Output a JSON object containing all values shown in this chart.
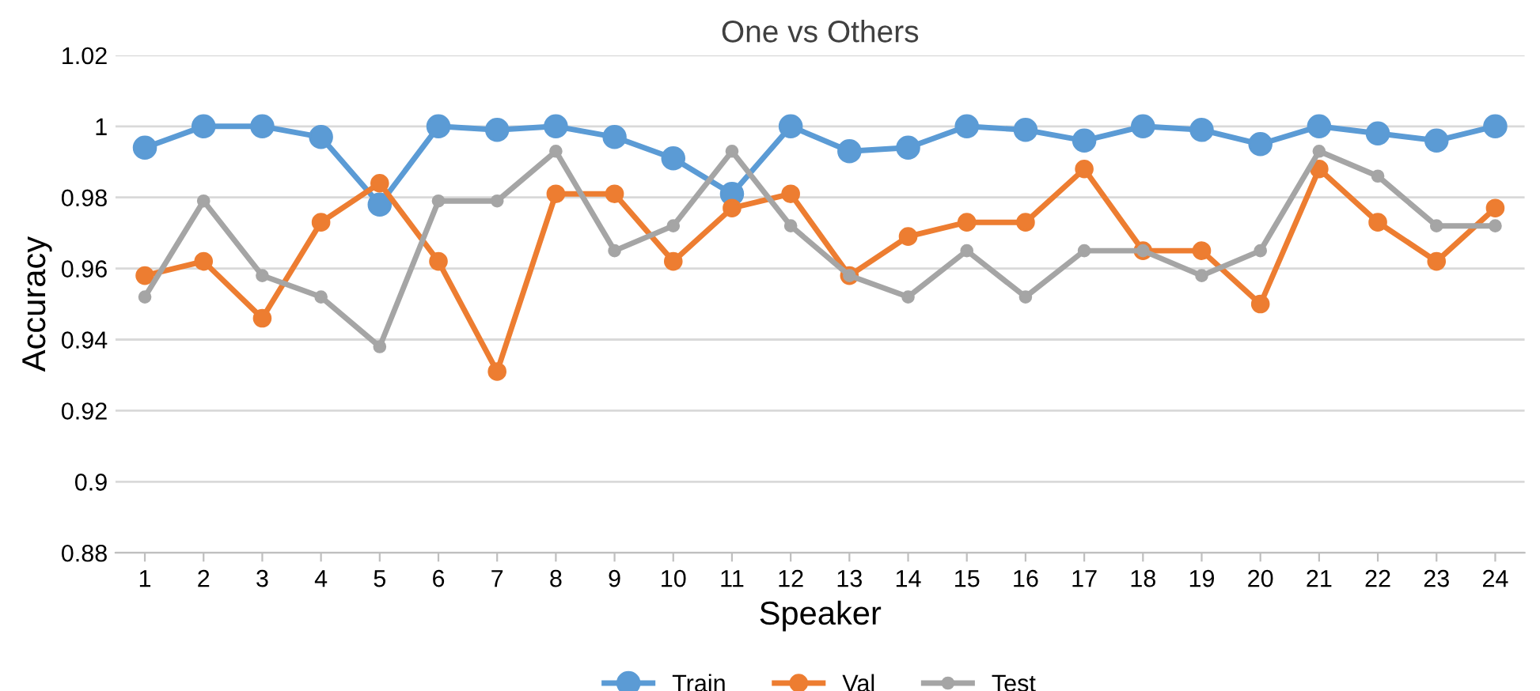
{
  "chart_data": {
    "type": "line",
    "title": "One vs Others",
    "xlabel": "Speaker",
    "ylabel": "Accuracy",
    "categories": [
      "1",
      "2",
      "3",
      "4",
      "5",
      "6",
      "7",
      "8",
      "9",
      "10",
      "11",
      "12",
      "13",
      "14",
      "15",
      "16",
      "17",
      "18",
      "19",
      "20",
      "21",
      "22",
      "23",
      "24"
    ],
    "series": [
      {
        "name": "Train",
        "color": "#5b9bd5",
        "values": [
          0.994,
          1,
          1,
          0.997,
          0.978,
          1,
          0.999,
          1,
          0.997,
          0.991,
          0.981,
          1,
          0.993,
          0.994,
          1,
          0.999,
          0.996,
          1,
          0.999,
          0.995,
          1,
          0.998,
          0.996,
          1
        ]
      },
      {
        "name": "Val",
        "color": "#ed7d31",
        "values": [
          0.958,
          0.962,
          0.946,
          0.973,
          0.984,
          0.962,
          0.931,
          0.981,
          0.981,
          0.962,
          0.977,
          0.981,
          0.958,
          0.969,
          0.973,
          0.973,
          0.988,
          0.965,
          0.965,
          0.95,
          0.988,
          0.973,
          0.962,
          0.977
        ]
      },
      {
        "name": "Test",
        "color": "#a5a5a5",
        "values": [
          0.952,
          0.979,
          0.958,
          0.952,
          0.938,
          0.979,
          0.979,
          0.993,
          0.965,
          0.972,
          0.993,
          0.972,
          0.958,
          0.952,
          0.965,
          0.952,
          0.965,
          0.965,
          0.958,
          0.965,
          0.993,
          0.986,
          0.972,
          0.972
        ]
      }
    ],
    "ylim": [
      0.88,
      1.02
    ],
    "yticks": [
      0.88,
      0.9,
      0.92,
      0.94,
      0.96,
      0.98,
      1,
      1.02
    ],
    "grid": "y",
    "legend": "bottom",
    "marker": "circle",
    "line_style": "solid"
  }
}
